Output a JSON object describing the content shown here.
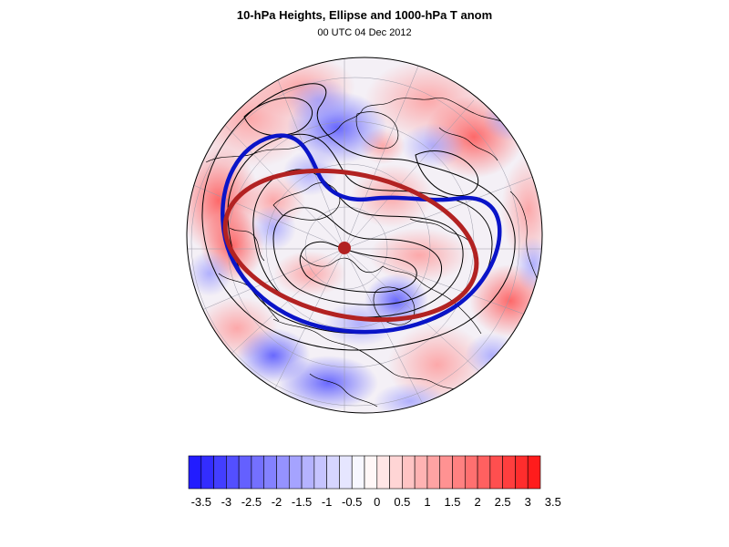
{
  "title": "10-hPa Heights, Ellipse and 1000-hPa T anom",
  "subtitle": "00 UTC 04 Dec 2012",
  "colors": {
    "cold_max": "#1a14ff",
    "warm_max": "#ff1414",
    "neutral": "#ffffff",
    "vortex_edge_contour": "#0a14c8",
    "ellipse": "#b22222",
    "height_contours": "#000000"
  },
  "colorbar": {
    "levels": [
      -3.5,
      -3.25,
      -3,
      -2.75,
      -2.5,
      -2.25,
      -2,
      -1.75,
      -1.5,
      -1.25,
      -1,
      -0.75,
      -0.5,
      -0.25,
      0,
      0.25,
      0.5,
      0.75,
      1,
      1.25,
      1.5,
      1.75,
      2,
      2.25,
      2.5,
      2.75,
      3,
      3.25,
      3.5
    ],
    "tick_labels": [
      "-3.5",
      "-3",
      "-2.5",
      "-2",
      "-1.5",
      "-1",
      "-0.5",
      "0",
      "0.5",
      "1",
      "1.5",
      "2",
      "2.5",
      "3",
      "3.5"
    ]
  },
  "map": {
    "projection": "polar-stereographic",
    "hemisphere": "north",
    "features": [
      "temperature-anomaly-shading",
      "coastlines",
      "graticule",
      "10-hPa-height-contours",
      "vortex-edge-contour",
      "fitted-ellipse",
      "ellipse-centroid"
    ]
  }
}
